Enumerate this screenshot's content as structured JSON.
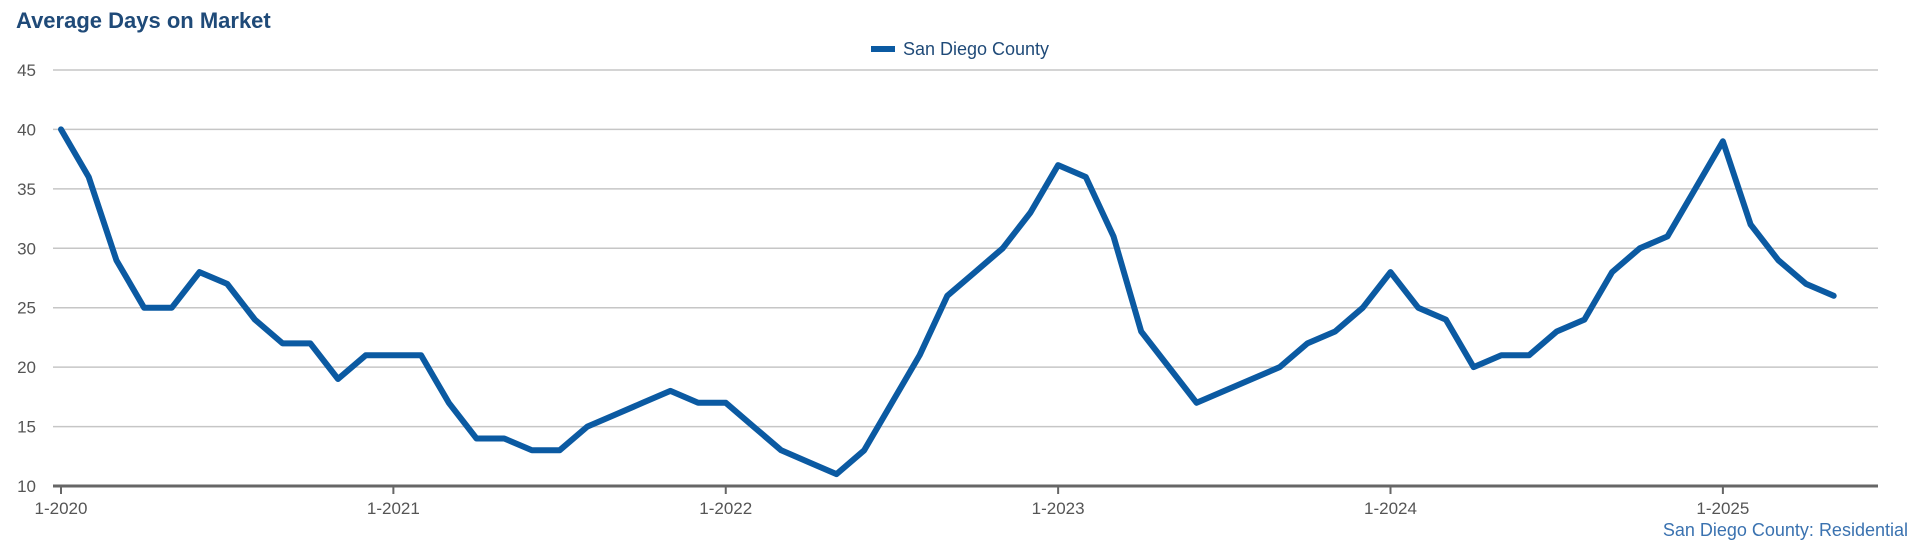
{
  "title": "Average Days on Market",
  "footer": "San Diego County: Residential",
  "colors": {
    "series": "#0b5aa2",
    "grid": "#c6c6c6",
    "axis": "#666666"
  },
  "chart_data": {
    "type": "line",
    "title": "Average Days on Market",
    "xlabel": "",
    "ylabel": "",
    "ylim": [
      10,
      45
    ],
    "yticks": [
      10,
      15,
      20,
      25,
      30,
      35,
      40,
      45
    ],
    "xticks": [
      "1-2020",
      "1-2021",
      "1-2022",
      "1-2023",
      "1-2024",
      "1-2025"
    ],
    "grid": true,
    "legend_position": "top-center",
    "x": [
      "1-2020",
      "2-2020",
      "3-2020",
      "4-2020",
      "5-2020",
      "6-2020",
      "7-2020",
      "8-2020",
      "9-2020",
      "10-2020",
      "11-2020",
      "12-2020",
      "1-2021",
      "2-2021",
      "3-2021",
      "4-2021",
      "5-2021",
      "6-2021",
      "7-2021",
      "8-2021",
      "9-2021",
      "10-2021",
      "11-2021",
      "12-2021",
      "1-2022",
      "2-2022",
      "3-2022",
      "4-2022",
      "5-2022",
      "6-2022",
      "7-2022",
      "8-2022",
      "9-2022",
      "10-2022",
      "11-2022",
      "12-2022",
      "1-2023",
      "2-2023",
      "3-2023",
      "4-2023",
      "5-2023",
      "6-2023",
      "7-2023",
      "8-2023",
      "9-2023",
      "10-2023",
      "11-2023",
      "12-2023",
      "1-2024",
      "2-2024",
      "3-2024",
      "4-2024",
      "5-2024",
      "6-2024",
      "7-2024",
      "8-2024",
      "9-2024",
      "10-2024",
      "11-2024",
      "12-2024",
      "1-2025",
      "2-2025",
      "3-2025",
      "4-2025",
      "5-2025"
    ],
    "series": [
      {
        "name": "San Diego County",
        "values": [
          40,
          36,
          29,
          25,
          25,
          28,
          27,
          24,
          22,
          22,
          19,
          21,
          21,
          21,
          17,
          14,
          14,
          13,
          13,
          15,
          16,
          17,
          18,
          17,
          17,
          15,
          13,
          12,
          11,
          13,
          17,
          21,
          26,
          28,
          30,
          33,
          37,
          36,
          31,
          23,
          20,
          17,
          18,
          19,
          20,
          22,
          23,
          25,
          28,
          25,
          24,
          20,
          21,
          21,
          23,
          24,
          28,
          30,
          31,
          35,
          39,
          32,
          29,
          27,
          26
        ]
      }
    ]
  }
}
